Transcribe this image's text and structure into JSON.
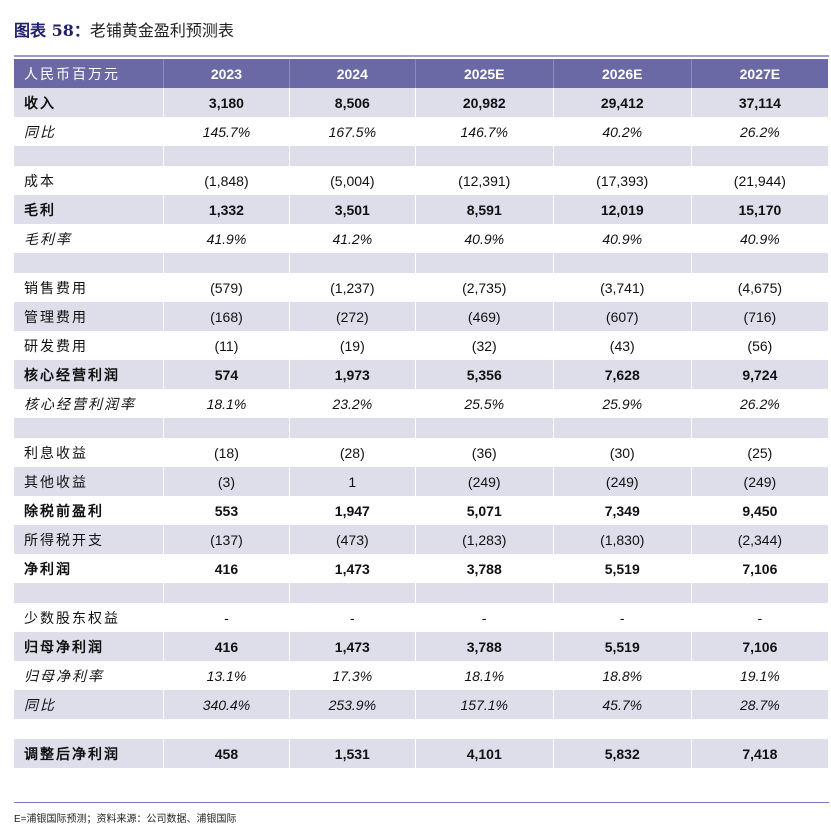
{
  "title_prefix": "图表 58：",
  "title_text": "老铺黄金盈利预测表",
  "header": [
    "人民币百万元",
    "2023",
    "2024",
    "2025E",
    "2026E",
    "2027E"
  ],
  "rows": [
    {
      "label": "收入",
      "values": [
        "3,180",
        "8,506",
        "20,982",
        "29,412",
        "37,114"
      ],
      "style": "bold",
      "shade": true
    },
    {
      "label": "同比",
      "values": [
        "145.7%",
        "167.5%",
        "146.7%",
        "40.2%",
        "26.2%"
      ],
      "style": "italic",
      "shade": false
    },
    {
      "blank": true,
      "shade": true
    },
    {
      "label": "成本",
      "values": [
        "(1,848)",
        "(5,004)",
        "(12,391)",
        "(17,393)",
        "(21,944)"
      ],
      "style": "normal",
      "shade": false
    },
    {
      "label": "毛利",
      "values": [
        "1,332",
        "3,501",
        "8,591",
        "12,019",
        "15,170"
      ],
      "style": "bold",
      "shade": true
    },
    {
      "label": "毛利率",
      "values": [
        "41.9%",
        "41.2%",
        "40.9%",
        "40.9%",
        "40.9%"
      ],
      "style": "italic",
      "shade": false
    },
    {
      "blank": true,
      "shade": true
    },
    {
      "label": "销售费用",
      "values": [
        "(579)",
        "(1,237)",
        "(2,735)",
        "(3,741)",
        "(4,675)"
      ],
      "style": "normal",
      "shade": false
    },
    {
      "label": "管理费用",
      "values": [
        "(168)",
        "(272)",
        "(469)",
        "(607)",
        "(716)"
      ],
      "style": "normal",
      "shade": true
    },
    {
      "label": "研发费用",
      "values": [
        "(11)",
        "(19)",
        "(32)",
        "(43)",
        "(56)"
      ],
      "style": "normal",
      "shade": false
    },
    {
      "label": "核心经营利润",
      "values": [
        "574",
        "1,973",
        "5,356",
        "7,628",
        "9,724"
      ],
      "style": "bold",
      "shade": true
    },
    {
      "label": "核心经营利润率",
      "values": [
        "18.1%",
        "23.2%",
        "25.5%",
        "25.9%",
        "26.2%"
      ],
      "style": "italic",
      "shade": false
    },
    {
      "blank": true,
      "shade": true
    },
    {
      "label": "利息收益",
      "values": [
        "(18)",
        "(28)",
        "(36)",
        "(30)",
        "(25)"
      ],
      "style": "normal",
      "shade": false
    },
    {
      "label": "其他收益",
      "values": [
        "(3)",
        "1",
        "(249)",
        "(249)",
        "(249)"
      ],
      "style": "normal",
      "shade": true
    },
    {
      "label": "除税前盈利",
      "values": [
        "553",
        "1,947",
        "5,071",
        "7,349",
        "9,450"
      ],
      "style": "bold",
      "shade": false
    },
    {
      "label": "所得税开支",
      "values": [
        "(137)",
        "(473)",
        "(1,283)",
        "(1,830)",
        "(2,344)"
      ],
      "style": "normal",
      "shade": true
    },
    {
      "label": "净利润",
      "values": [
        "416",
        "1,473",
        "3,788",
        "5,519",
        "7,106"
      ],
      "style": "bold",
      "shade": false
    },
    {
      "blank": true,
      "shade": true
    },
    {
      "label": "少数股东权益",
      "values": [
        "-",
        "-",
        "-",
        "-",
        "-"
      ],
      "style": "normal",
      "shade": false
    },
    {
      "label": "归母净利润",
      "values": [
        "416",
        "1,473",
        "3,788",
        "5,519",
        "7,106"
      ],
      "style": "bold",
      "shade": true
    },
    {
      "label": "归母净利率",
      "values": [
        "13.1%",
        "17.3%",
        "18.1%",
        "18.8%",
        "19.1%"
      ],
      "style": "italic",
      "shade": false
    },
    {
      "label": "同比",
      "values": [
        "340.4%",
        "253.9%",
        "157.1%",
        "45.7%",
        "28.7%"
      ],
      "style": "italic",
      "shade": true
    },
    {
      "blank": true,
      "shade": false
    },
    {
      "label": "调整后净利润",
      "values": [
        "458",
        "1,531",
        "4,101",
        "5,832",
        "7,418"
      ],
      "style": "bold",
      "shade": true
    }
  ],
  "footnote": "E=浦银国际预测；资料来源：公司数据、浦银国际",
  "colors": {
    "header_bg": "#6a69a5",
    "shade_bg": "#dedeeb",
    "title": "#1f1f6e"
  }
}
